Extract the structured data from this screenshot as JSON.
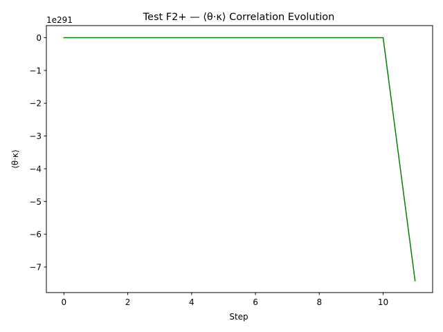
{
  "chart_data": {
    "type": "line",
    "title": "Test F2+ — ⟨θ·κ⟩ Correlation Evolution",
    "xlabel": "Step",
    "ylabel": "⟨θ·κ⟩",
    "y_offset_label": "1e291",
    "xlim": [
      -0.55,
      11.55
    ],
    "ylim": [
      -7.78,
      0.37
    ],
    "x_ticks": [
      0,
      2,
      4,
      6,
      8,
      10
    ],
    "y_ticks": [
      0,
      -1,
      -2,
      -3,
      -4,
      -5,
      -6,
      -7
    ],
    "x_tick_labels": [
      "0",
      "2",
      "4",
      "6",
      "8",
      "10"
    ],
    "y_tick_labels": [
      "0",
      "−1",
      "−2",
      "−3",
      "−4",
      "−5",
      "−6",
      "−7"
    ],
    "grid": false,
    "legend": "none",
    "series": [
      {
        "color": "#008000",
        "x": [
          0,
          1,
          2,
          3,
          4,
          5,
          6,
          7,
          8,
          9,
          10,
          11
        ],
        "y": [
          0,
          0,
          0,
          0,
          0,
          0,
          0,
          0,
          0,
          0,
          0,
          -7.42
        ]
      }
    ]
  }
}
